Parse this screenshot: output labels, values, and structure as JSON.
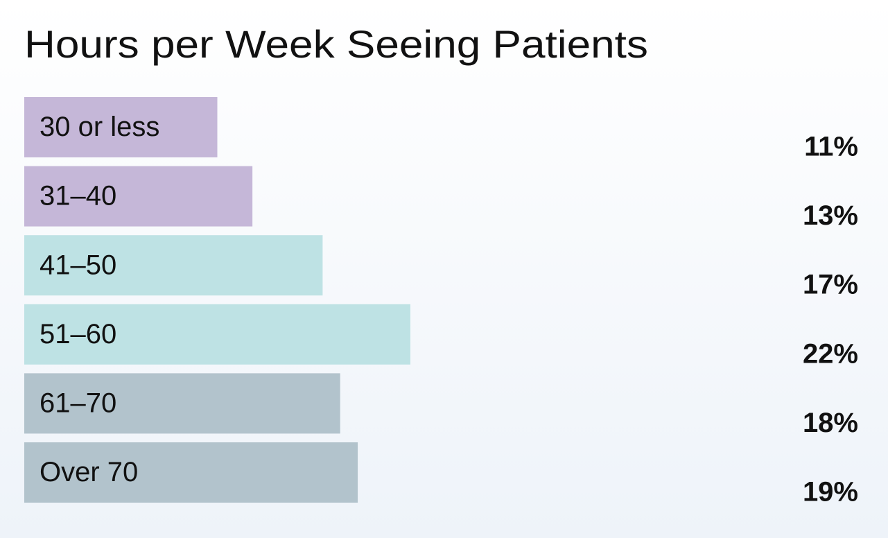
{
  "chart_data": {
    "type": "bar",
    "orientation": "horizontal",
    "title": "Hours per Week Seeing Patients",
    "categories": [
      "30 or less",
      "31–40",
      "41–50",
      "51–60",
      "61–70",
      "Over 70"
    ],
    "values": [
      11,
      13,
      17,
      22,
      18,
      19
    ],
    "value_labels": [
      "11%",
      "13%",
      "17%",
      "22%",
      "18%",
      "19%"
    ],
    "colors": [
      "#c5b7d8",
      "#c5b7d8",
      "#bee2e4",
      "#bee2e4",
      "#b2c3cc",
      "#b2c3cc"
    ]
  }
}
